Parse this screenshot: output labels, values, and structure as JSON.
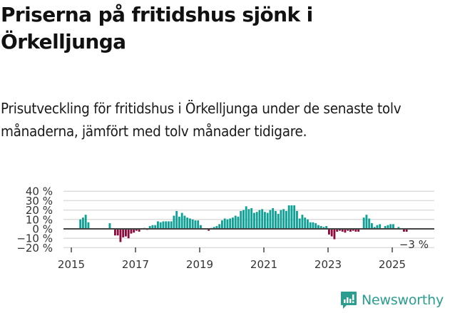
{
  "header": {
    "title": "Priserna på fritidshus sjönk i Örkelljunga",
    "subtitle": "Prisutveckling för fritidshus i Örkelljunga under de senaste tolv månaderna, jämfört med tolv månader tidigare."
  },
  "brand": {
    "name": "Newsworthy",
    "color": "#2a9d8f"
  },
  "colors": {
    "positive": "#0fa195",
    "negative": "#8c0a3c",
    "zero_line": "#444444",
    "grid": "#dddddd",
    "text": "#333333"
  },
  "annotation": {
    "last_value_label": "−3 %"
  },
  "chart_data": {
    "type": "bar",
    "title": "Priserna på fritidshus sjönk i Örkelljunga",
    "subtitle": "Prisutveckling för fritidshus i Örkelljunga under de senaste tolv månaderna, jämfört med tolv månader tidigare.",
    "xlabel": "",
    "ylabel": "",
    "ylim": [
      -20,
      40
    ],
    "yticks": [
      40,
      30,
      20,
      10,
      0,
      -10,
      -20
    ],
    "ytick_labels": [
      "40 %",
      "30 %",
      "20 %",
      "10 %",
      "0 %",
      "−10 %",
      "−20 %"
    ],
    "xticks": [
      "2015",
      "2017",
      "2019",
      "2021",
      "2023",
      "2025"
    ],
    "grid": true,
    "legend": null,
    "start_month": "2015-01",
    "frequency": "monthly",
    "annotation": "−3 %",
    "values": [
      null,
      null,
      null,
      10,
      12,
      15,
      7,
      null,
      null,
      null,
      null,
      null,
      null,
      null,
      6,
      null,
      -7,
      -7,
      -14,
      -9,
      -8,
      -10,
      -5,
      -4,
      -2,
      -3,
      0,
      1,
      -1,
      3,
      4,
      4,
      8,
      7,
      8,
      8,
      8,
      8,
      14,
      19,
      13,
      17,
      14,
      12,
      11,
      10,
      9,
      9,
      4,
      null,
      null,
      -2,
      1,
      2,
      3,
      5,
      9,
      11,
      10,
      11,
      12,
      14,
      13,
      19,
      20,
      24,
      21,
      22,
      17,
      18,
      20,
      21,
      18,
      17,
      20,
      22,
      19,
      16,
      20,
      21,
      19,
      25,
      25,
      25,
      19,
      11,
      15,
      12,
      10,
      7,
      7,
      6,
      4,
      3,
      2,
      3,
      -6,
      -8,
      -11,
      -3,
      -2,
      -3,
      -4,
      -2,
      -3,
      -2,
      -3,
      -3,
      null,
      12,
      15,
      11,
      6,
      2,
      4,
      5,
      null,
      3,
      4,
      5,
      5,
      null,
      2,
      null,
      -3,
      -3
    ]
  }
}
